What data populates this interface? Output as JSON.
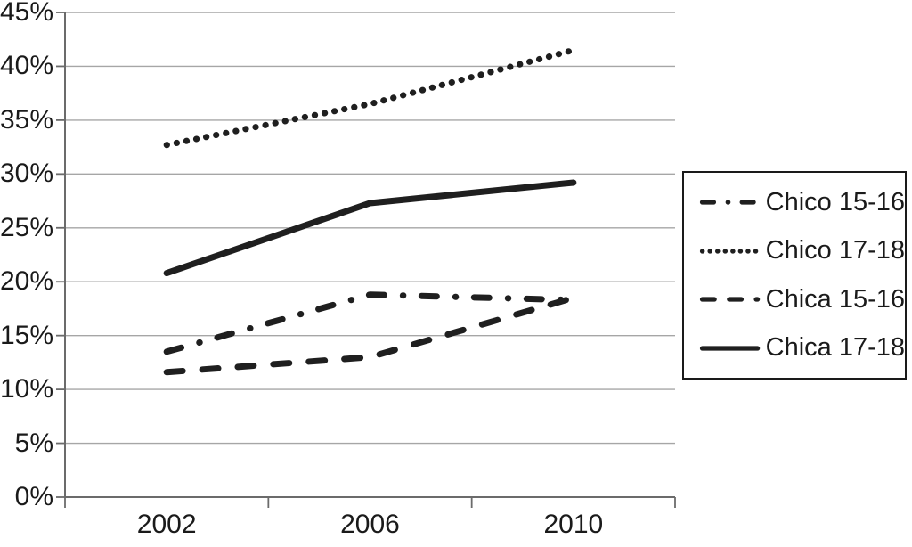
{
  "chart_data": {
    "type": "line",
    "categories": [
      "2002",
      "2006",
      "2010"
    ],
    "series": [
      {
        "name": "Chico 15-16",
        "style": "dashdot",
        "values": [
          13.5,
          18.8,
          18.3
        ]
      },
      {
        "name": "Chico 17-18",
        "style": "dotted",
        "values": [
          32.7,
          36.5,
          41.5
        ]
      },
      {
        "name": "Chica 15-16",
        "style": "dashed",
        "values": [
          11.6,
          13.0,
          18.5
        ]
      },
      {
        "name": "Chica 17-18",
        "style": "solid",
        "values": [
          20.8,
          27.3,
          29.2
        ]
      }
    ],
    "title": "",
    "xlabel": "",
    "ylabel": "",
    "ylim": [
      0,
      45
    ],
    "ytick_step": 5,
    "ytick_labels": [
      "0%",
      "5%",
      "10%",
      "15%",
      "20%",
      "25%",
      "30%",
      "35%",
      "40%",
      "45%"
    ],
    "grid": true,
    "legend_position": "right",
    "colors": {
      "line": "#1f1f1f",
      "grid": "#a6a6a6",
      "axis": "#6b6b6b",
      "text": "#1a1a1a",
      "legend_border": "#1a1a1a",
      "background": "#ffffff"
    }
  }
}
